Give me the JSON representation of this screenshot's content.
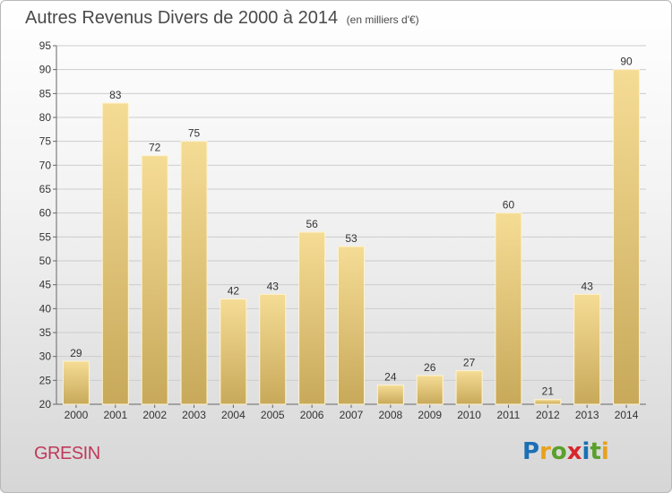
{
  "title": {
    "main": "Autres Revenus Divers de 2000 à 2014",
    "unit": "(en milliers d'€)"
  },
  "commune": "GRESIN",
  "logo": {
    "letters": [
      "P",
      "r",
      "o",
      "x",
      "i",
      "t",
      "i"
    ],
    "colors": [
      "#1b6fb5",
      "#e8a11a",
      "#5aa02c",
      "#d8262b",
      "#1b6fb5",
      "#5aa02c",
      "#e8a11a"
    ]
  },
  "colors": {
    "bar_light": "#f5dc95",
    "bar_dark": "#c8a95a",
    "grid": "#cccccc",
    "title": "#4a4a4a",
    "commune": "#c0395a"
  },
  "chart_data": {
    "type": "bar",
    "title": "Autres Revenus Divers de 2000 à 2014",
    "xlabel": "",
    "ylabel": "",
    "categories": [
      "2000",
      "2001",
      "2002",
      "2003",
      "2004",
      "2005",
      "2006",
      "2007",
      "2008",
      "2009",
      "2010",
      "2011",
      "2012",
      "2013",
      "2014"
    ],
    "values": [
      29,
      83,
      72,
      75,
      42,
      43,
      56,
      53,
      24,
      26,
      27,
      60,
      21,
      43,
      90
    ],
    "ylim": [
      20,
      95
    ],
    "yticks": [
      20,
      25,
      30,
      35,
      40,
      45,
      50,
      55,
      60,
      65,
      70,
      75,
      80,
      85,
      90,
      95
    ],
    "grid": true,
    "data_labels": true
  }
}
